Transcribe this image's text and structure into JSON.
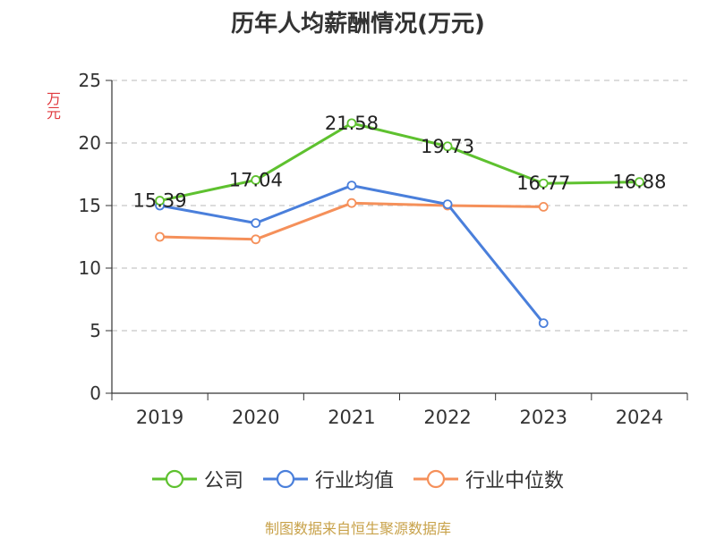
{
  "chart_data": {
    "type": "line",
    "title": "历年人均薪酬情况(万元)",
    "ylabel": "万元",
    "xlabel": "",
    "categories": [
      "2019",
      "2020",
      "2021",
      "2022",
      "2023",
      "2024"
    ],
    "ylim": [
      0,
      25
    ],
    "yticks": [
      0,
      5,
      10,
      15,
      20,
      25
    ],
    "grid": "horizontal-dashed",
    "legend_position": "bottom",
    "series": [
      {
        "name": "公司",
        "color": "#5ec12f",
        "show_labels": true,
        "values": [
          15.39,
          17.04,
          21.58,
          19.73,
          16.77,
          16.88
        ]
      },
      {
        "name": "行业均值",
        "color": "#4a7fdb",
        "show_labels": false,
        "values": [
          15.0,
          13.6,
          16.6,
          15.1,
          5.6,
          null
        ]
      },
      {
        "name": "行业中位数",
        "color": "#f5905a",
        "show_labels": false,
        "values": [
          12.5,
          12.3,
          15.2,
          15.0,
          14.9,
          null
        ]
      }
    ]
  },
  "source": "制图数据来自恒生聚源数据库"
}
